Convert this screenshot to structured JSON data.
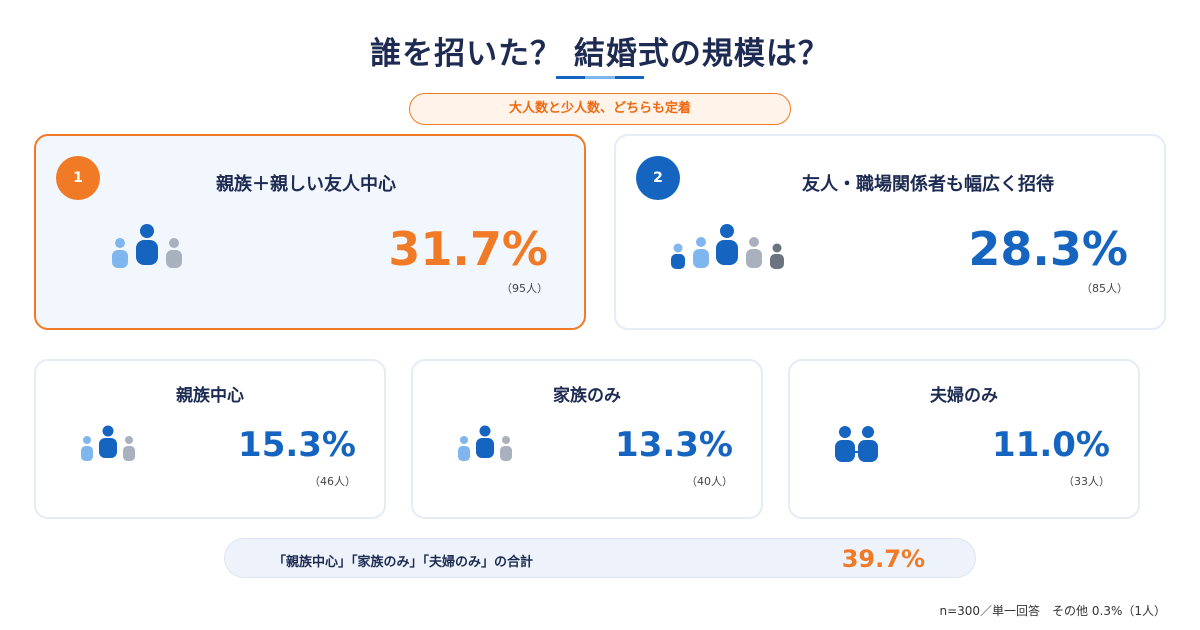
{
  "title": "誰を招いた？ 結婚式の規模は？",
  "subtitle": "大人数と少人数、どちらも定着",
  "colors": {
    "accent_orange": "#f07a26",
    "accent_blue": "#1565c0",
    "light_blue": "#7fb6ee",
    "gray": "#a9b1bf",
    "dark_gray": "#6b7280",
    "navy": "#1d2b52"
  },
  "top_cards": [
    {
      "rank": "1",
      "label": "親族＋親しい友人中心",
      "percent": "31.7%",
      "count": "（95人）"
    },
    {
      "rank": "2",
      "label": "友人・職場関係者も幅広く招待",
      "percent": "28.3%",
      "count": "（85人）"
    }
  ],
  "small_cards": [
    {
      "label": "親族中心",
      "percent": "15.3%",
      "count": "（46人）"
    },
    {
      "label": "家族のみ",
      "percent": "13.3%",
      "count": "（40人）"
    },
    {
      "label": "夫婦のみ",
      "percent": "11.0%",
      "count": "（33人）"
    }
  ],
  "total": {
    "label": "「親族中心」「家族のみ」「夫婦のみ」の合計",
    "value": "39.7%"
  },
  "footnote": "n=300／単一回答　その他 0.3%（1人）",
  "icons": [
    "people-group-icon",
    "couple-icon"
  ]
}
